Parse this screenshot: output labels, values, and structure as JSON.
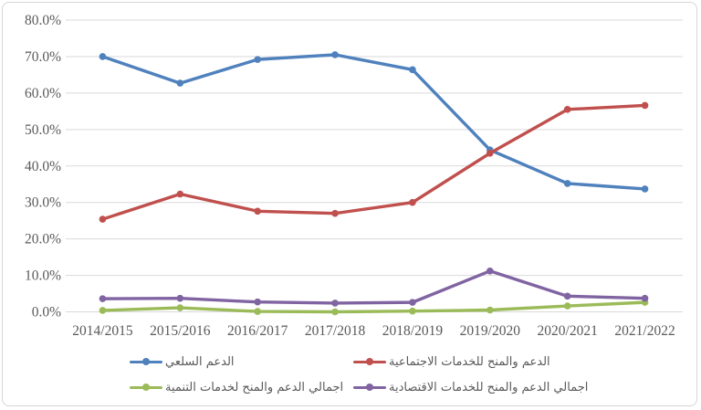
{
  "chart_data": {
    "type": "line",
    "title": "",
    "xlabel": "",
    "ylabel": "",
    "categories": [
      "2014/2015",
      "2015/2016",
      "2016/2017",
      "2017/2018",
      "2018/2019",
      "2019/2020",
      "2020/2021",
      "2021/2022"
    ],
    "series": [
      {
        "name": "الدعم السلعي",
        "color": "#4F81BD",
        "values": [
          70.0,
          62.7,
          69.2,
          70.5,
          66.4,
          44.4,
          35.2,
          33.7
        ]
      },
      {
        "name": "الدعم والمنح للخدمات الاجتماعية",
        "color": "#C0504D",
        "values": [
          25.4,
          32.3,
          27.6,
          27.0,
          30.0,
          43.5,
          55.5,
          56.6
        ]
      },
      {
        "name": "اجمالي الدعم والمنح لخدمات التنمية",
        "color": "#9BBB59",
        "values": [
          0.4,
          1.1,
          0.1,
          0.0,
          0.2,
          0.5,
          1.6,
          2.6
        ]
      },
      {
        "name": "اجمالي الدعم والمنح للخدمات الاقتصادية",
        "color": "#8064A2",
        "values": [
          3.6,
          3.7,
          2.7,
          2.4,
          2.6,
          11.2,
          4.3,
          3.7
        ]
      }
    ],
    "ylim": [
      0,
      80
    ],
    "ytick_step": 10,
    "y_tick_labels": [
      "0.0%",
      "10.0%",
      "20.0%",
      "30.0%",
      "40.0%",
      "50.0%",
      "60.0%",
      "70.0%",
      "80.0%"
    ],
    "grid": true,
    "gridline_color": "#D9D9D9",
    "tick_label_color": "#595959",
    "legend_position": "bottom"
  }
}
